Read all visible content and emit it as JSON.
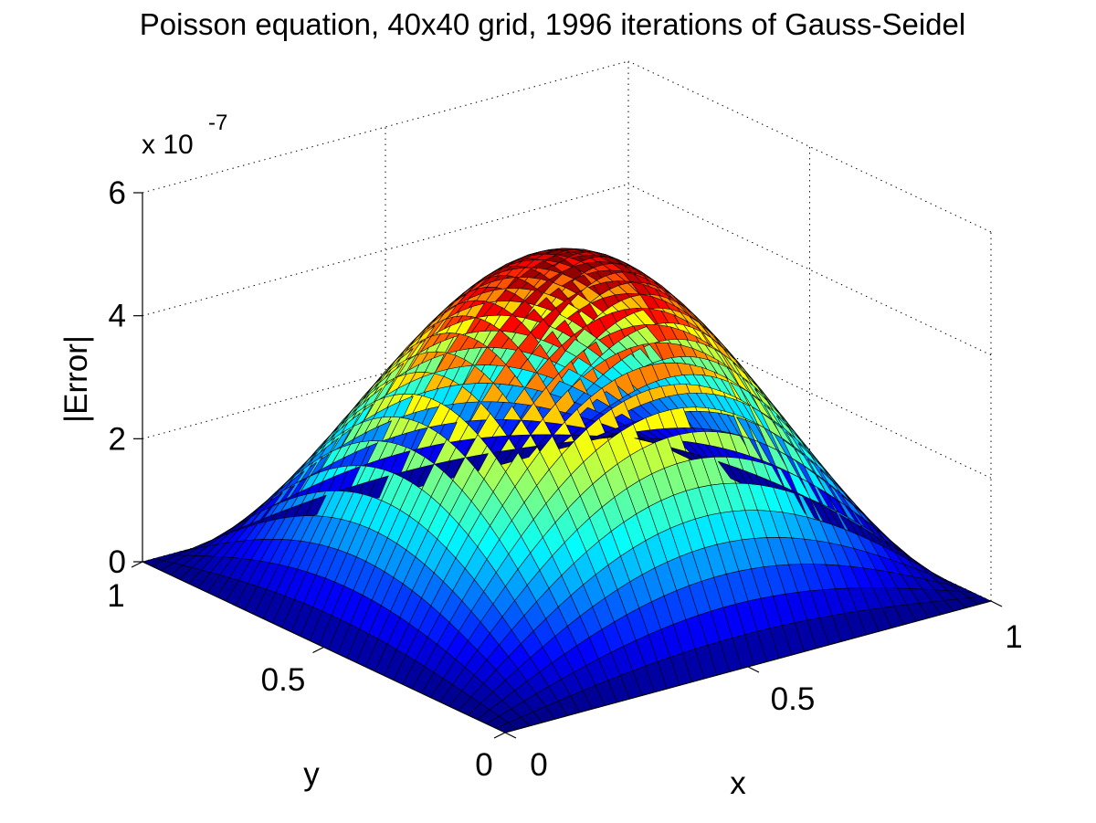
{
  "chart_data": {
    "type": "surface",
    "title": "Poisson equation, 40x40 grid, 1996 iterations of Gauss-Seidel",
    "xlabel": "x",
    "ylabel": "y",
    "zlabel": "|Error|",
    "z_multiplier": "x 10",
    "z_exponent": "-7",
    "xlim": [
      0,
      1
    ],
    "ylim": [
      0,
      1
    ],
    "zlim": [
      0,
      6
    ],
    "x_ticks": [
      "0",
      "0.5",
      "1"
    ],
    "y_ticks": [
      "0",
      "0.5",
      "1"
    ],
    "z_ticks": [
      "0",
      "2",
      "4",
      "6"
    ],
    "grid": true,
    "grid_style": "dotted",
    "colormap": "jet",
    "grid_points": 40,
    "surface": {
      "function": "z = 5.3e-7 * sin(pi*x) * sin(pi*y)",
      "peak_value": 5.3,
      "peak_at": [
        0.5,
        0.5
      ],
      "boundary_value": 0
    }
  }
}
